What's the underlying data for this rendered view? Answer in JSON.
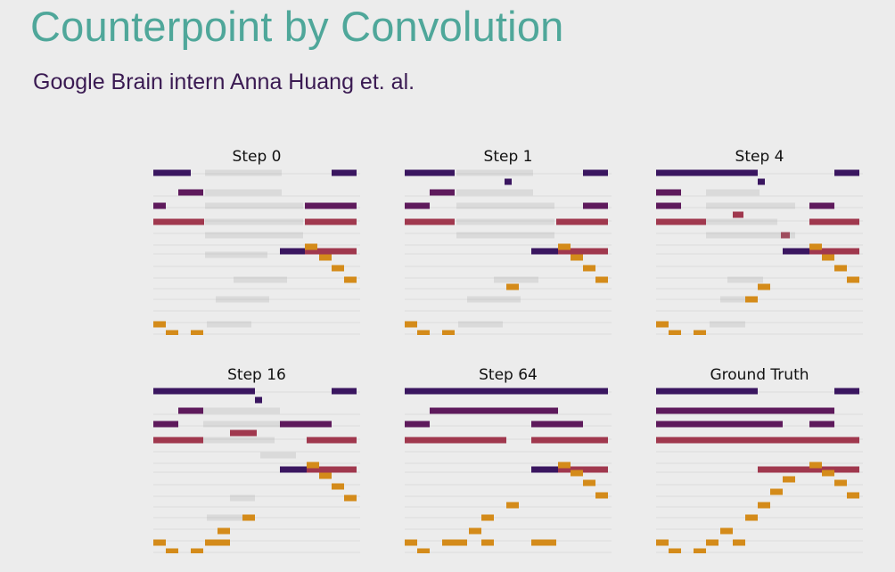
{
  "slide": {
    "title": "Counterpoint by Convolution",
    "subtitle": "Google Brain intern Anna Huang et. al."
  },
  "colors": {
    "soprano": "#3a1660",
    "alto": "#5e1a5c",
    "tenor": "#a0384e",
    "bass": "#d48b1a",
    "gridline": "#dcdcdc",
    "blur": "#9a9a9a"
  },
  "panels": [
    {
      "label": "Step 0"
    },
    {
      "label": "Step 1"
    },
    {
      "label": "Step 4"
    },
    {
      "label": "Step 16"
    },
    {
      "label": "Step 64"
    },
    {
      "label": "Ground Truth"
    }
  ]
}
